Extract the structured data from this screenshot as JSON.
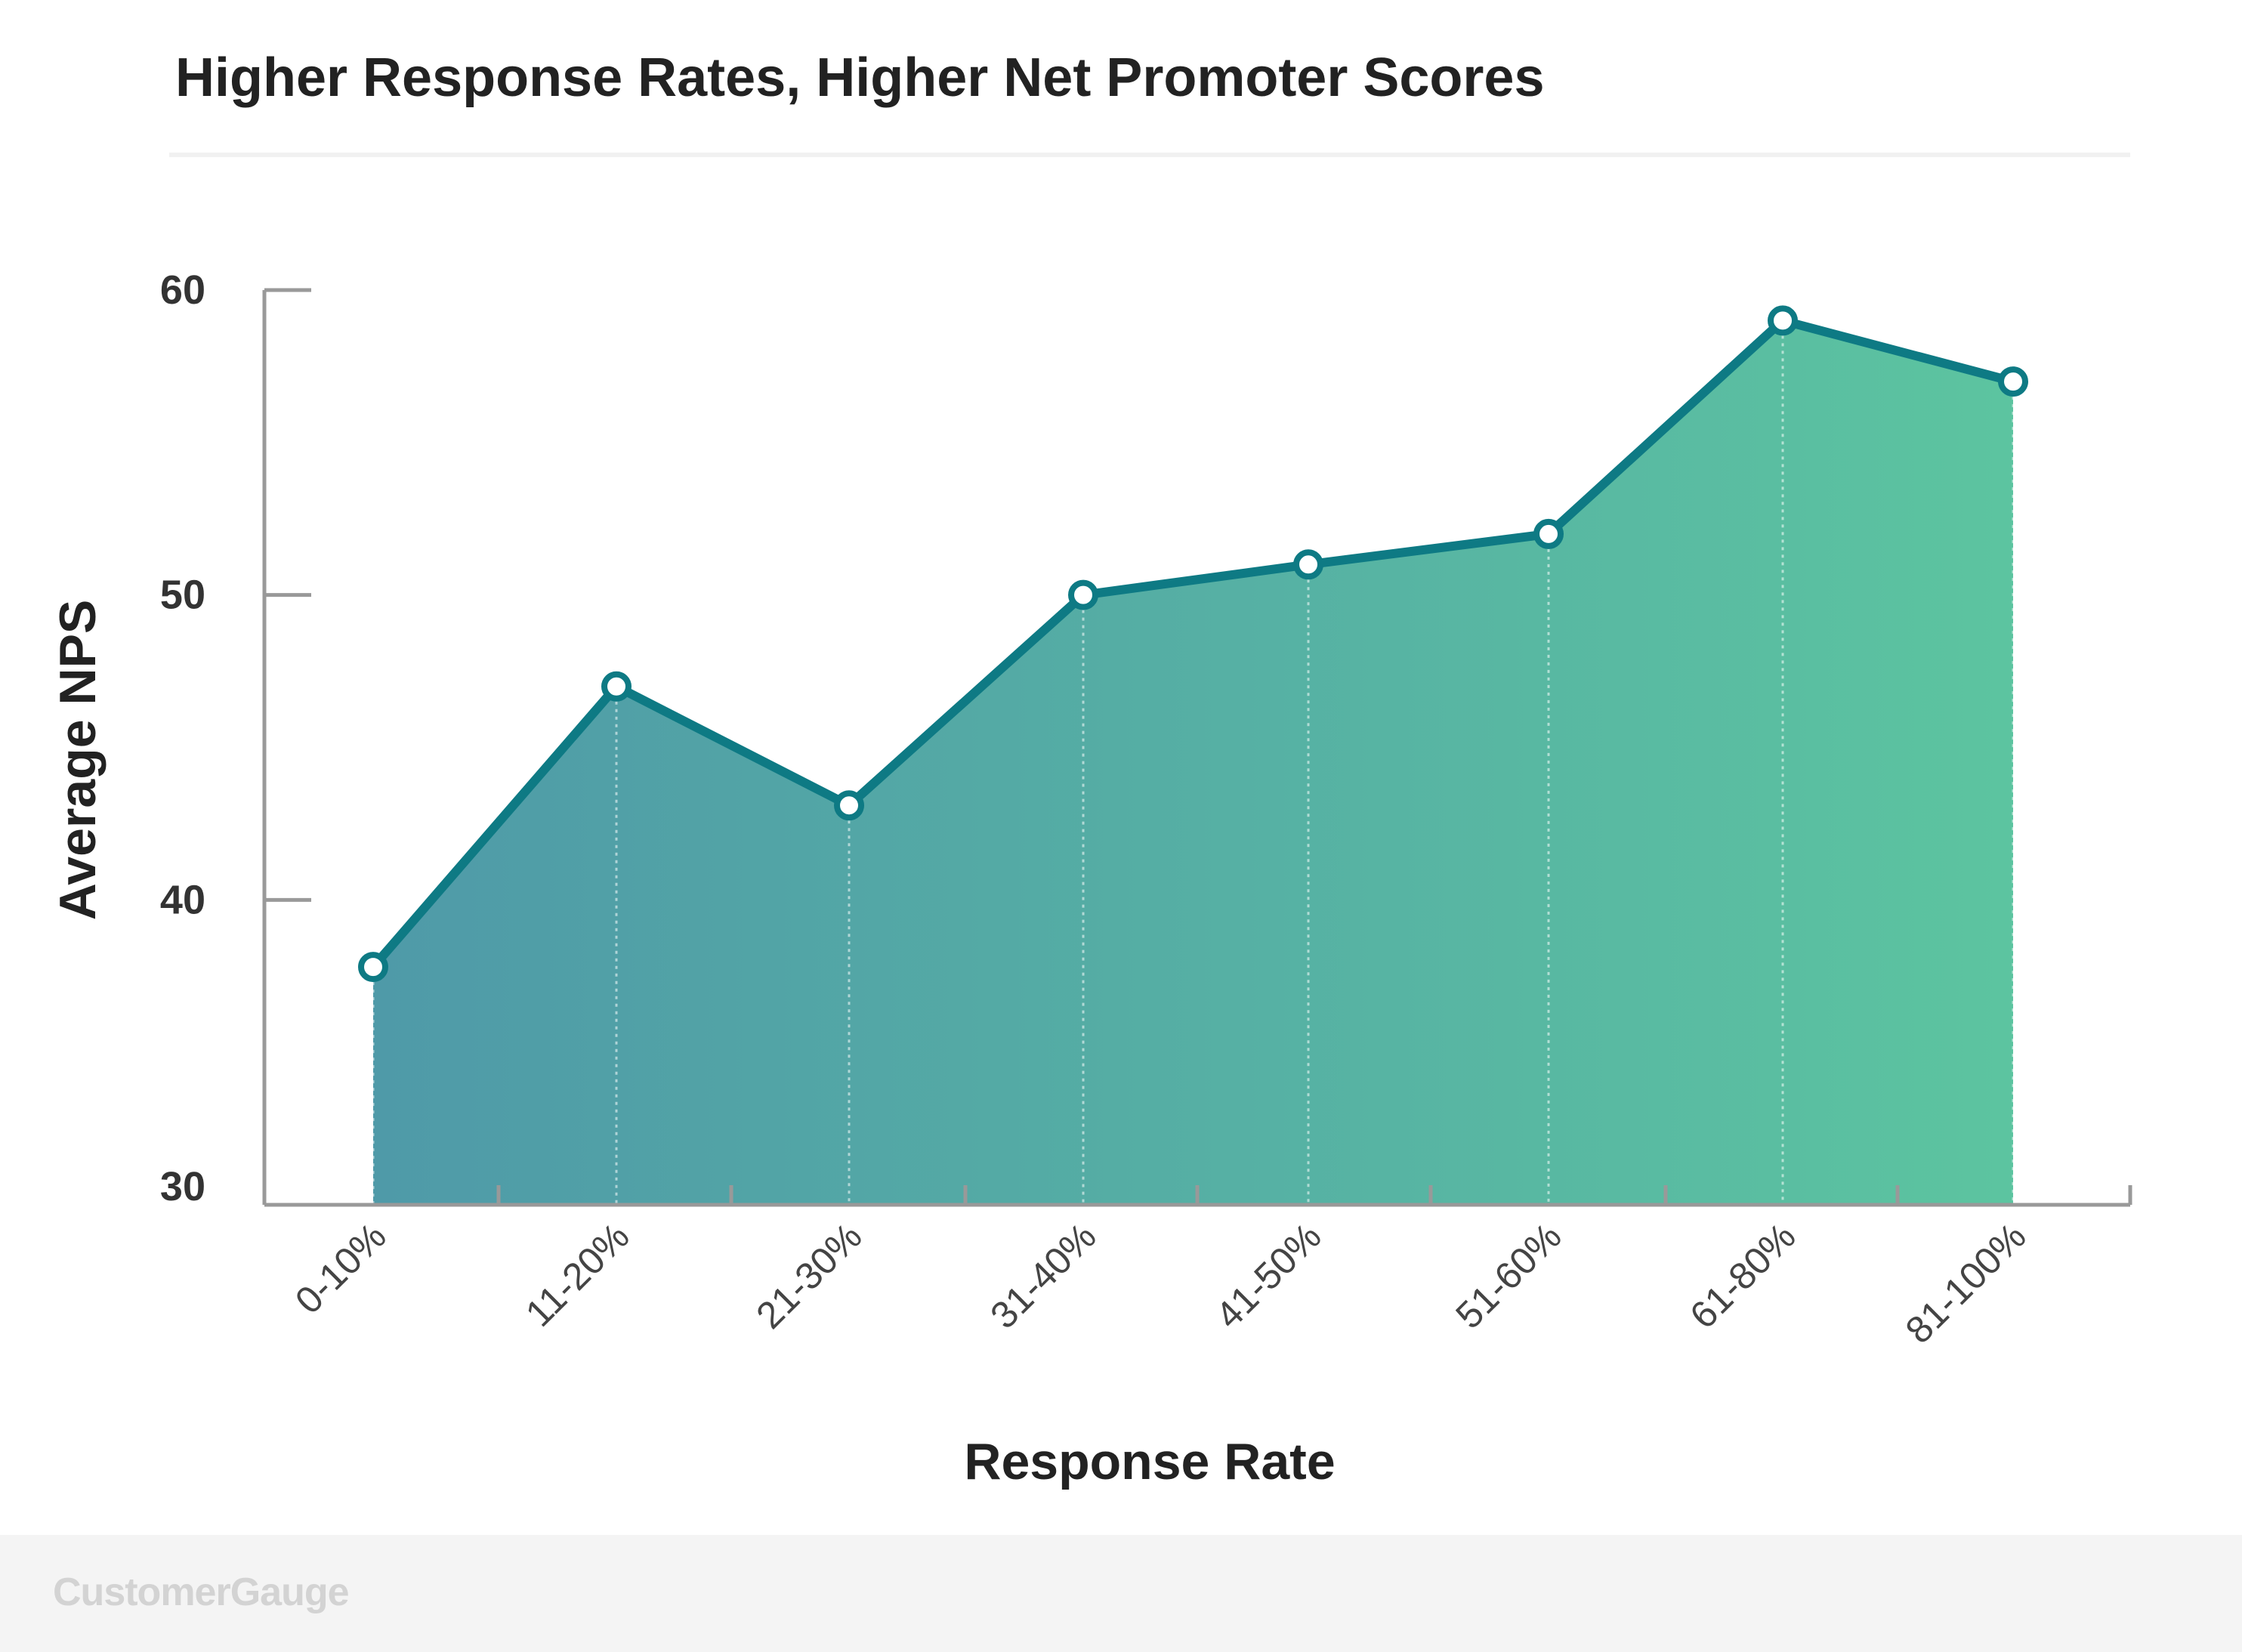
{
  "colors": {
    "line": "#0e7a84",
    "fill_start": "#4f9aa8",
    "fill_end": "#5cc4a0",
    "axis": "#999999",
    "marker_fill": "#ffffff"
  },
  "footer": {
    "logo_text": "CustomerGauge"
  },
  "chart_data": {
    "type": "area",
    "title": "Higher Response Rates, Higher Net Promoter Scores",
    "xlabel": "Response Rate",
    "ylabel": "Average NPS",
    "categories": [
      "0-10%",
      "11-20%",
      "21-30%",
      "31-40%",
      "41-50%",
      "51-60%",
      "61-80%",
      "81-100%"
    ],
    "values": [
      37.8,
      47,
      43.1,
      50,
      51,
      52,
      59,
      57
    ],
    "ylim": [
      30,
      60
    ],
    "yticks": [
      60,
      50,
      40,
      30
    ],
    "markers": true,
    "grid": false,
    "legend": "none"
  }
}
